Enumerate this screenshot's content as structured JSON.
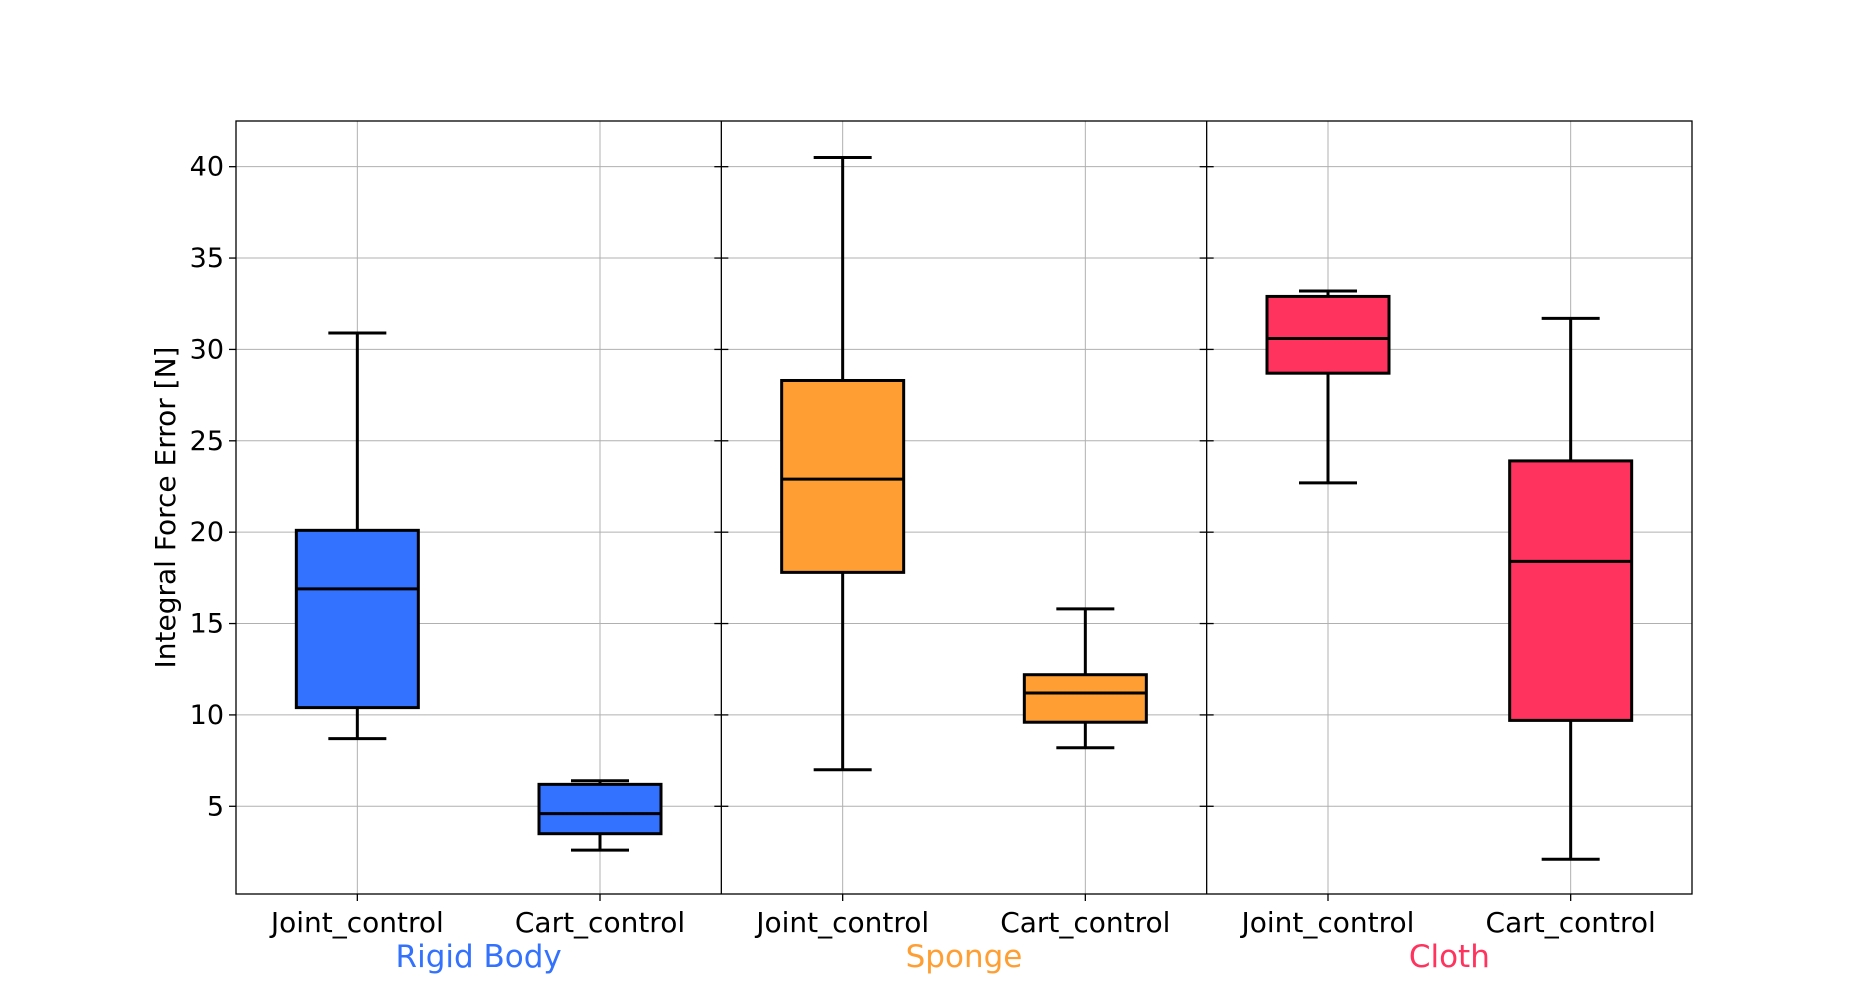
{
  "chart_data": {
    "type": "box",
    "ylabel": "Integral Force Error [N]",
    "ylim": [
      0.2,
      42.5
    ],
    "yticks": [
      5,
      10,
      15,
      20,
      25,
      30,
      35,
      40
    ],
    "grid": true,
    "groups": [
      {
        "name": "Rigid Body",
        "color": "#3371ff",
        "boxes": [
          {
            "label": "Joint_control",
            "whisker_low": 8.7,
            "q1": 10.4,
            "median": 16.9,
            "q3": 20.1,
            "whisker_high": 30.9
          },
          {
            "label": "Cart_control",
            "whisker_low": 2.6,
            "q1": 3.5,
            "median": 4.6,
            "q3": 6.2,
            "whisker_high": 6.4
          }
        ]
      },
      {
        "name": "Sponge",
        "color": "#ff9f33",
        "boxes": [
          {
            "label": "Joint_control",
            "whisker_low": 7.0,
            "q1": 17.8,
            "median": 22.9,
            "q3": 28.3,
            "whisker_high": 40.5
          },
          {
            "label": "Cart_control",
            "whisker_low": 8.2,
            "q1": 9.6,
            "median": 11.2,
            "q3": 12.2,
            "whisker_high": 15.8
          }
        ]
      },
      {
        "name": "Cloth",
        "color": "#ff335e",
        "boxes": [
          {
            "label": "Joint_control",
            "whisker_low": 22.7,
            "q1": 28.7,
            "median": 30.6,
            "q3": 32.9,
            "whisker_high": 33.2
          },
          {
            "label": "Cart_control",
            "whisker_low": 2.1,
            "q1": 9.7,
            "median": 18.4,
            "q3": 23.9,
            "whisker_high": 31.7
          }
        ]
      }
    ]
  }
}
